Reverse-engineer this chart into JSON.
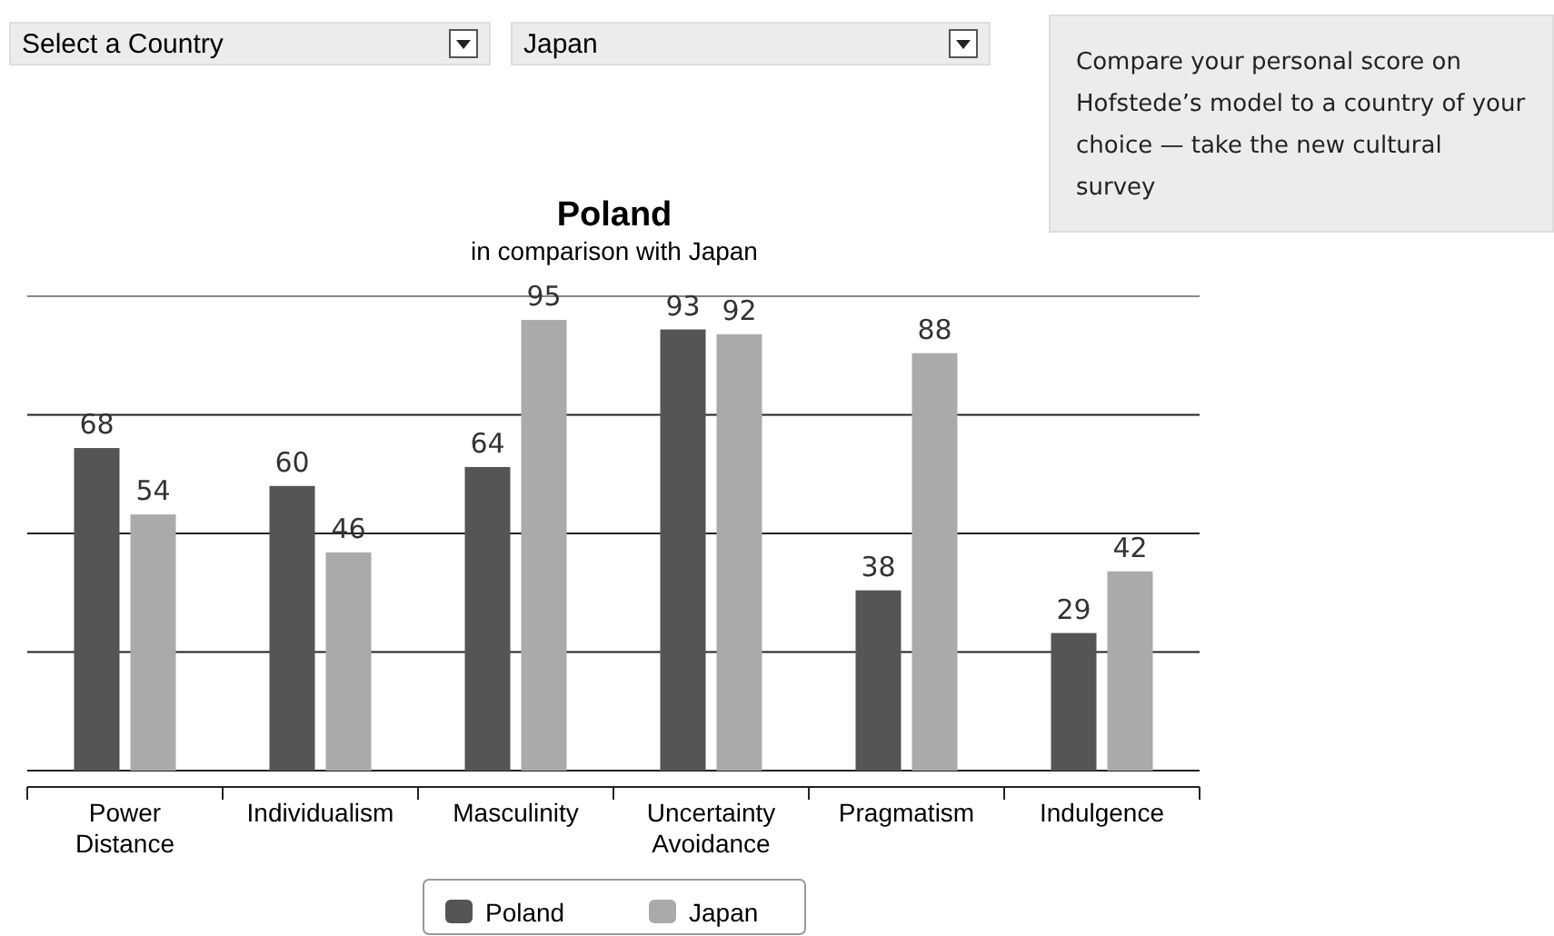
{
  "chart_data": {
    "type": "bar",
    "title": "Poland",
    "subtitle": "in comparison with Japan",
    "categories": [
      "Power Distance",
      "Individualism",
      "Masculinity",
      "Uncertainty Avoidance",
      "Pragmatism",
      "Indulgence"
    ],
    "series": [
      {
        "name": "Poland",
        "color": "#555555",
        "values": [
          68,
          60,
          64,
          93,
          38,
          29
        ]
      },
      {
        "name": "Japan",
        "color": "#aaaaaa",
        "values": [
          54,
          46,
          95,
          92,
          88,
          42
        ]
      }
    ],
    "ylim": [
      0,
      100
    ],
    "yticks": [
      {
        "value": 25,
        "label": null
      },
      {
        "value": 50,
        "label": null
      },
      {
        "value": 75,
        "label": null
      },
      {
        "value": 100,
        "label": null
      }
    ],
    "tick_labels": "x",
    "grid": "y",
    "data_labels": true,
    "legend": "bottom",
    "annotations": [
      "Select a Country",
      "Japan",
      "Compare your personal score on Hofstede’s model to a country of your choice — take the new cultural survey"
    ]
  }
}
